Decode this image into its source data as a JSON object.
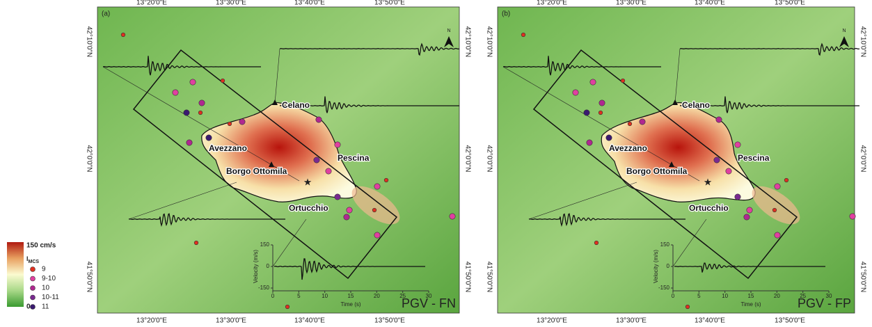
{
  "legend": {
    "max_label": "150 cm/s",
    "min_label": "0",
    "title_main": "I",
    "title_sub": "MCS",
    "colorbar": [
      "#b01a10",
      "#e8a060",
      "#fbfbd0",
      "#a8d888",
      "#3a9a30"
    ],
    "classes": [
      {
        "label": "9",
        "color": "#e03020"
      },
      {
        "label": "9-10",
        "color": "#e040a0"
      },
      {
        "label": "10",
        "color": "#b02890"
      },
      {
        "label": "10-11",
        "color": "#7a2a90"
      },
      {
        "label": "11",
        "color": "#3a1a70"
      }
    ]
  },
  "panels": [
    {
      "label": "(a)",
      "title": "PGV - FN",
      "north": "N",
      "lon_labels": [
        "13°20'0\"E",
        "13°30'0\"E",
        "13°40'0\"E",
        "13°50'0\"E"
      ],
      "lat_labels": [
        "42°10'0\"N",
        "42°0'0\"N",
        "41°50'0\"N"
      ],
      "towns": [
        "Celano",
        "Avezzano",
        "Pescina",
        "Borgo Ottomila",
        "Ortucchio"
      ],
      "inset": {
        "y_label": "Velocity (m/s)",
        "x_label": "Time (s)",
        "yticks": [
          150,
          0,
          -150
        ],
        "xticks": [
          0,
          5,
          10,
          15,
          20,
          25,
          30
        ]
      }
    },
    {
      "label": "(b)",
      "title": "PGV - FP",
      "north": "N",
      "lon_labels": [
        "13°20'0\"E",
        "13°30'0\"E",
        "13°40'0\"E",
        "13°50'0\"E"
      ],
      "lat_labels": [
        "42°10'0\"N",
        "42°0'0\"N",
        "41°50'0\"N"
      ],
      "towns": [
        "Celano",
        "Avezzano",
        "Pescina",
        "Borgo Ottomila",
        "Ortucchio"
      ],
      "inset": {
        "y_label": "Velocity (m/s)",
        "x_label": "Time (s)",
        "yticks": [
          150,
          0,
          -150
        ],
        "xticks": [
          0,
          5,
          10,
          15,
          20,
          25,
          30
        ]
      }
    }
  ]
}
